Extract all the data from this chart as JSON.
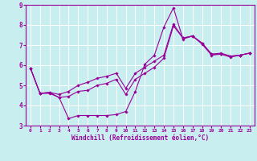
{
  "bg_color": "#c8eef0",
  "line_color": "#990099",
  "grid_color": "#ffffff",
  "xlabel": "Windchill (Refroidissement éolien,°C)",
  "xlim": [
    -0.5,
    23.5
  ],
  "ylim": [
    3,
    9
  ],
  "yticks": [
    3,
    4,
    5,
    6,
    7,
    8,
    9
  ],
  "xticks": [
    0,
    1,
    2,
    3,
    4,
    5,
    6,
    7,
    8,
    9,
    10,
    11,
    12,
    13,
    14,
    15,
    16,
    17,
    18,
    19,
    20,
    21,
    22,
    23
  ],
  "line1_x": [
    0,
    1,
    2,
    3,
    4,
    5,
    6,
    7,
    8,
    9,
    10,
    11,
    12,
    13,
    14,
    15,
    16,
    17,
    18,
    19,
    20,
    21,
    22,
    23
  ],
  "line1_y": [
    5.85,
    4.6,
    4.6,
    4.4,
    3.35,
    3.5,
    3.5,
    3.5,
    3.5,
    3.55,
    3.7,
    4.7,
    6.05,
    6.5,
    7.9,
    8.85,
    7.3,
    7.45,
    7.05,
    6.5,
    6.55,
    6.4,
    6.5,
    6.6
  ],
  "line2_x": [
    0,
    1,
    2,
    3,
    4,
    5,
    6,
    7,
    8,
    9,
    10,
    11,
    12,
    13,
    14,
    15,
    16,
    17,
    18,
    19,
    20,
    21,
    22,
    23
  ],
  "line2_y": [
    5.85,
    4.6,
    4.65,
    4.4,
    4.45,
    4.7,
    4.75,
    5.0,
    5.1,
    5.3,
    4.55,
    5.3,
    5.6,
    5.9,
    6.35,
    7.95,
    7.35,
    7.45,
    7.1,
    6.55,
    6.55,
    6.45,
    6.5,
    6.6
  ],
  "line3_x": [
    0,
    1,
    2,
    3,
    4,
    5,
    6,
    7,
    8,
    9,
    10,
    11,
    12,
    13,
    14,
    15,
    16,
    17,
    18,
    19,
    20,
    21,
    22,
    23
  ],
  "line3_y": [
    5.85,
    4.6,
    4.65,
    4.55,
    4.7,
    5.0,
    5.15,
    5.35,
    5.45,
    5.6,
    4.85,
    5.6,
    5.9,
    6.2,
    6.5,
    8.05,
    7.35,
    7.45,
    7.1,
    6.55,
    6.6,
    6.45,
    6.5,
    6.6
  ]
}
